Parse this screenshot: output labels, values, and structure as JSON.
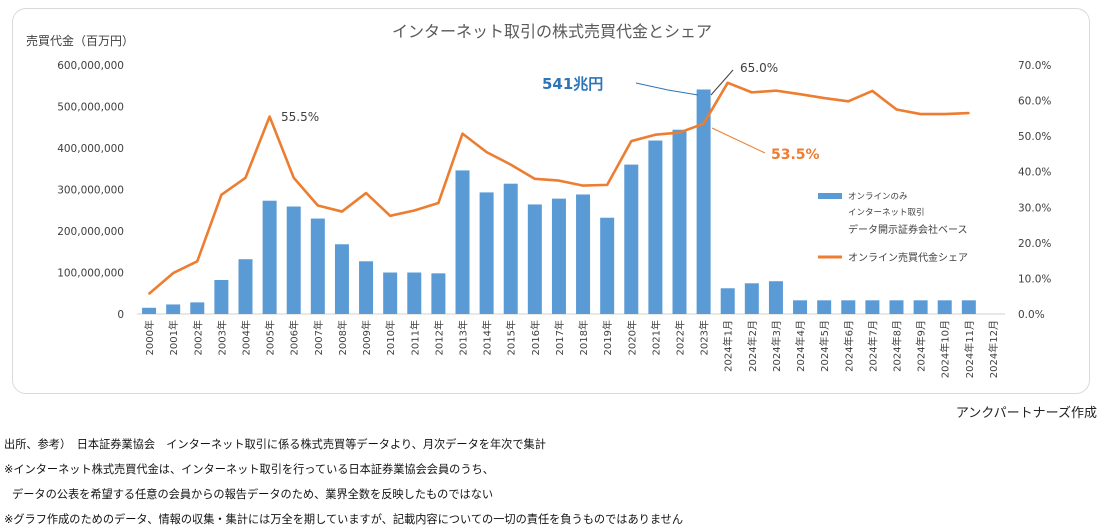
{
  "chart_data": {
    "type": "bar",
    "title": "インターネット取引の株式売買代金とシェア",
    "ylabel": "売買代金（百万円）",
    "ylim": [
      0,
      600000000
    ],
    "y2lim": [
      0,
      70
    ],
    "grid": false,
    "legend_position": "right",
    "left_ticks": [
      "600,000,000",
      "500,000,000",
      "400,000,000",
      "300,000,000",
      "200,000,000",
      "100,000,000",
      "0"
    ],
    "right_ticks": [
      "70.0%",
      "60.0%",
      "50.0%",
      "40.0%",
      "30.0%",
      "20.0%",
      "10.0%",
      "0.0%"
    ],
    "categories": [
      "2000年",
      "2001年",
      "2002年",
      "2003年",
      "2004年",
      "2005年",
      "2006年",
      "2007年",
      "2008年",
      "2009年",
      "2010年",
      "2011年",
      "2012年",
      "2013年",
      "2014年",
      "2015年",
      "2016年",
      "2017年",
      "2018年",
      "2019年",
      "2020年",
      "2021年",
      "2022年",
      "2023年",
      "2024年1月",
      "2024年2月",
      "2024年3月",
      "2024年4月",
      "2024年5月",
      "2024年6月",
      "2024年7月",
      "2024年8月",
      "2024年9月",
      "2024年10月",
      "2024年11月",
      "2024年12月"
    ],
    "series": [
      {
        "name": "オンラインのみインターネット取引データ開示証券会社ベース",
        "kind": "bar",
        "axis": "left",
        "color": "#5B9BD5",
        "values": [
          15000000,
          23000000,
          28000000,
          82000000,
          132000000,
          273000000,
          259000000,
          230000000,
          168000000,
          127000000,
          100000000,
          100000000,
          98000000,
          346000000,
          293000000,
          314000000,
          264000000,
          278000000,
          288000000,
          232000000,
          360000000,
          418000000,
          444000000,
          541000000,
          62000000,
          74000000,
          79000000,
          33000000,
          33000000,
          33000000,
          33000000,
          33000000,
          33000000,
          33000000,
          33000000,
          null
        ]
      },
      {
        "name": "オンライン売買代金シェア",
        "kind": "line",
        "axis": "right",
        "color": "#ED7D31",
        "values": [
          5.7,
          11.5,
          14.8,
          33.5,
          38.3,
          55.5,
          38.3,
          30.5,
          28.8,
          34.0,
          27.6,
          29.1,
          31.2,
          50.7,
          45.5,
          42.0,
          38.0,
          37.5,
          36.1,
          36.3,
          48.6,
          50.4,
          51.0,
          53.5,
          65.0,
          62.3,
          62.8,
          61.8,
          60.7,
          59.8,
          62.7,
          57.5,
          56.2,
          56.2,
          56.5,
          null
        ]
      }
    ],
    "annotations": {
      "share_2005": "55.5%",
      "peak_label": "541兆円",
      "share_2023": "53.5%",
      "share_2024_01": "65.0%"
    },
    "legend": {
      "bar_line1": "オンラインのみ",
      "bar_line2": "インターネット取引",
      "bar_line3": "データ開示証券会社ベース",
      "line_label": "オンライン売買代金シェア"
    }
  },
  "credit": "アンクパートナーズ作成",
  "notes": {
    "source": "出所、参考）　日本証券業協会　インターネット取引に係る株式売買等データより、月次データを年次で集計",
    "note1": "※インターネット株式売買代金は、インターネット取引を行っている日本証券業協会会員のうち、",
    "note1b": "データの公表を希望する任意の会員からの報告データのため、業界全数を反映したものではない",
    "note2": "※グラフ作成のためのデータ、情報の収集・集計には万全を期していますが、記載内容についての一切の責任を負うものではありません"
  }
}
